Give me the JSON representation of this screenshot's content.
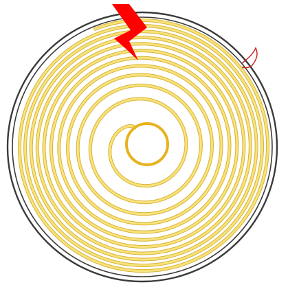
{
  "diagram": {
    "colors": {
      "background": "#ffffff",
      "outer_ring": "#3a3a3a",
      "coil_fill": "#f7e37a",
      "coil_edge": "#d9b33a",
      "inner_core": "#e8b21e",
      "bolt": "#ff0000",
      "hook": "#cc2222"
    },
    "coil": {
      "turns": 11,
      "direction": "inward"
    },
    "icons": [
      "coil-spiral-icon",
      "lightning-bolt-icon",
      "hook-mark-icon"
    ]
  }
}
